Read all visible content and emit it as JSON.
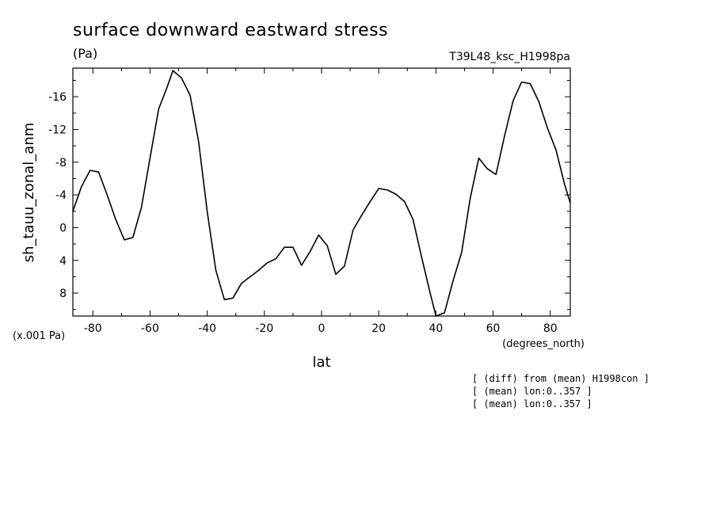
{
  "chart_data": {
    "type": "line",
    "title": "surface downward eastward stress",
    "units": "(Pa)",
    "run_id": "T39L48_ksc_H1998pa",
    "ylabel": "sh_tauu_zonal_anm",
    "xlabel": "lat",
    "y_scale_note": "(x.001 Pa)",
    "x_units": "(degrees_north)",
    "xlim": [
      -87,
      87
    ],
    "ylim": [
      10.8,
      -19.5
    ],
    "y_axis_inverted": true,
    "xticks": [
      -80,
      -60,
      -40,
      -20,
      0,
      20,
      40,
      60,
      80
    ],
    "yticks": [
      -16,
      -12,
      -8,
      -4,
      0,
      4,
      8
    ],
    "xtick_labels": [
      "-80",
      "-60",
      "-40",
      "-20",
      "0",
      "20",
      "40",
      "60",
      "80"
    ],
    "ytick_labels": [
      "-16",
      "-12",
      "-8",
      "-4",
      "0",
      "4",
      "8"
    ],
    "annotations": [
      "[ (diff) from (mean) H1998con ]",
      "[ (mean) lon:0..357 ]",
      "[ (mean) lon:0..357 ]"
    ],
    "series": [
      {
        "x": [
          -87,
          -84,
          -81,
          -78,
          -75,
          -72,
          -69,
          -66,
          -63,
          -60,
          -57,
          -54,
          -52,
          -49,
          -46,
          -43,
          -40,
          -37,
          -34,
          -31,
          -28,
          -25,
          -22,
          -19,
          -16,
          -13,
          -10,
          -7,
          -4,
          -1,
          2,
          5,
          8,
          11,
          14,
          17,
          20,
          23,
          26,
          29,
          32,
          35,
          38,
          40,
          43,
          46,
          49,
          52,
          55,
          58,
          61,
          64,
          67,
          70,
          73,
          76,
          79,
          82,
          85,
          87
        ],
        "y": [
          -2,
          -5,
          -7,
          -6.8,
          -4,
          -1,
          1.5,
          1.2,
          -2.5,
          -8.5,
          -14.5,
          -17.2,
          -19.2,
          -18.3,
          -16.2,
          -10.5,
          -2,
          5.2,
          8.8,
          8.6,
          6.8,
          6,
          5.2,
          4.3,
          3.8,
          2.4,
          2.4,
          4.6,
          2.9,
          0.9,
          2.2,
          5.7,
          4.7,
          0.3,
          -1.5,
          -3.2,
          -4.8,
          -4.6,
          -4.1,
          -3.2,
          -1,
          3.6,
          8,
          10.8,
          10.4,
          6.5,
          3,
          -3.6,
          -8.5,
          -7.2,
          -6.5,
          -11.2,
          -15.5,
          -17.8,
          -17.6,
          -15.4,
          -12.2,
          -9.5,
          -5.3,
          -3
        ]
      }
    ]
  }
}
